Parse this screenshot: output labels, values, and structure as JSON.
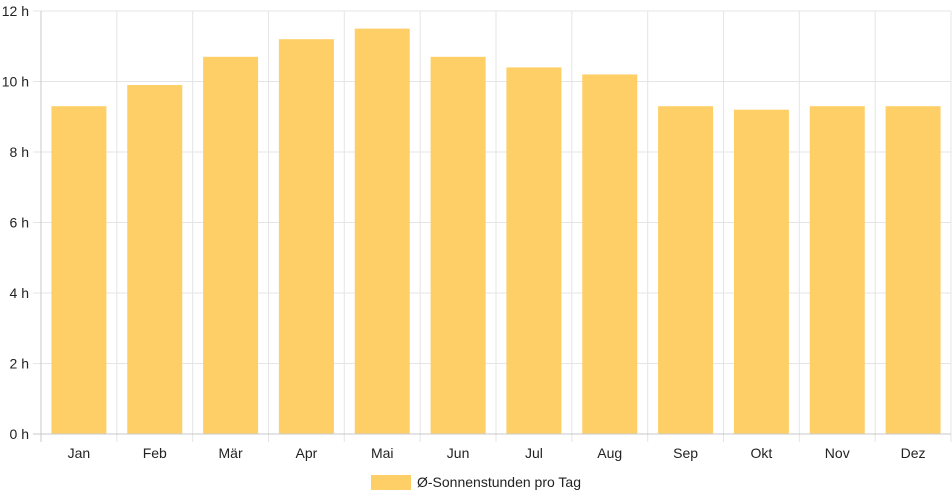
{
  "chart_data": {
    "type": "bar",
    "categories": [
      "Jan",
      "Feb",
      "Mär",
      "Apr",
      "Mai",
      "Jun",
      "Jul",
      "Aug",
      "Sep",
      "Okt",
      "Nov",
      "Dez"
    ],
    "series": [
      {
        "name": "Ø-Sonnenstunden pro Tag",
        "values": [
          9.3,
          9.9,
          10.7,
          11.2,
          11.5,
          10.7,
          10.4,
          10.2,
          9.3,
          9.2,
          9.3,
          9.3
        ]
      }
    ],
    "y_ticks": [
      "0 h",
      "2 h",
      "4 h",
      "6 h",
      "8 h",
      "10 h",
      "12 h"
    ],
    "ylim": [
      0,
      12
    ],
    "grid": true,
    "legend_position": "bottom",
    "colors": {
      "bar": "#fecf67",
      "grid": "#e5e5e5",
      "axis": "#c8c8c8",
      "text": "#222222"
    }
  }
}
